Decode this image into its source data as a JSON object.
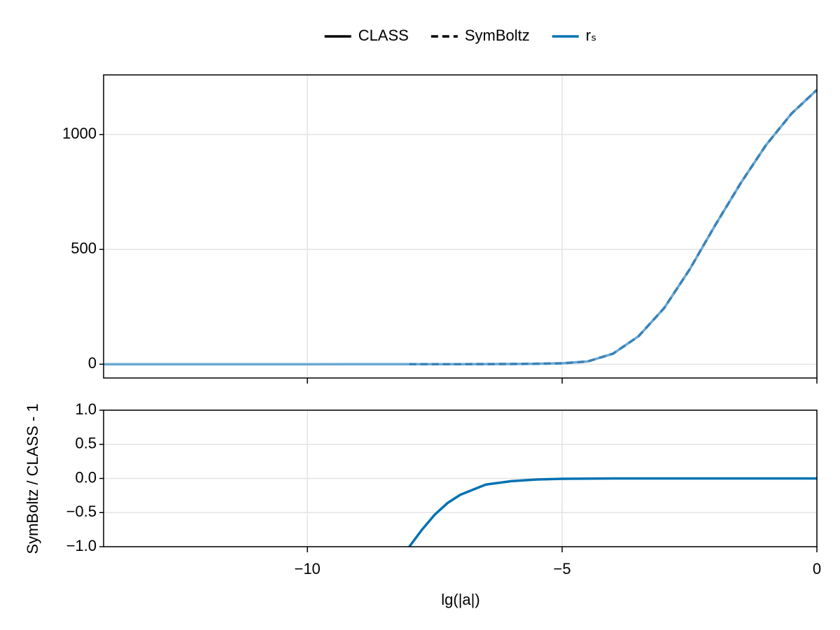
{
  "chart_data": [
    {
      "type": "line",
      "legend": [
        {
          "label": "CLASS",
          "color": "#000000",
          "dash": "solid"
        },
        {
          "label": "SymBoltz",
          "color": "#000000",
          "dash": "dashed"
        },
        {
          "label": "rₛ",
          "color": "#0072b2",
          "dash": "solid"
        }
      ],
      "x": [
        -14,
        -12,
        -10,
        -8,
        -7,
        -6,
        -5.5,
        -5,
        -4.5,
        -4,
        -3.5,
        -3,
        -2.5,
        -2,
        -1.5,
        -1,
        -0.5,
        0
      ],
      "series": [
        {
          "name": "CLASS",
          "color": "#6aa8d3",
          "dash": "solid",
          "values": [
            0,
            0,
            0,
            0.1,
            0.3,
            1,
            2,
            4,
            12,
            46,
            122,
            244,
            412,
            604,
            787,
            954,
            1091,
            1195
          ]
        },
        {
          "name": "SymBoltz",
          "color": "#3a82b6",
          "dash": "dashed",
          "values": [
            null,
            null,
            null,
            0.1,
            0.3,
            1,
            2,
            4,
            12,
            46,
            122,
            244,
            412,
            604,
            787,
            954,
            1091,
            1195
          ]
        }
      ],
      "xlim": [
        -14,
        0
      ],
      "ylim": [
        -60,
        1260
      ],
      "xticks": [
        -10,
        -5,
        0
      ],
      "yticks": [
        0,
        500,
        1000
      ],
      "grid": true
    },
    {
      "type": "line",
      "x": [
        -8,
        -7.75,
        -7.5,
        -7.25,
        -7,
        -6.5,
        -6,
        -5.5,
        -5,
        -4,
        -2,
        0
      ],
      "series": [
        {
          "name": "rₛ",
          "color": "#0072b2",
          "dash": "solid",
          "values": [
            -1,
            -0.75,
            -0.53,
            -0.36,
            -0.24,
            -0.09,
            -0.04,
            -0.015,
            -0.005,
            0,
            0,
            0
          ]
        }
      ],
      "xlabel": "lg(|a|)",
      "ylabel": "SymBoltz / CLASS - 1",
      "xlim": [
        -14,
        0
      ],
      "ylim": [
        -1,
        1
      ],
      "xticks": [
        {
          "value": -10,
          "label": "−10"
        },
        {
          "value": -5,
          "label": "−5"
        },
        0
      ],
      "yticks": [
        {
          "value": -1,
          "label": "−1.0"
        },
        {
          "value": -0.5,
          "label": "−0.5"
        },
        {
          "value": 0,
          "label": "0.0"
        },
        0.5,
        {
          "value": 1,
          "label": "1.0"
        }
      ],
      "grid": true
    }
  ]
}
